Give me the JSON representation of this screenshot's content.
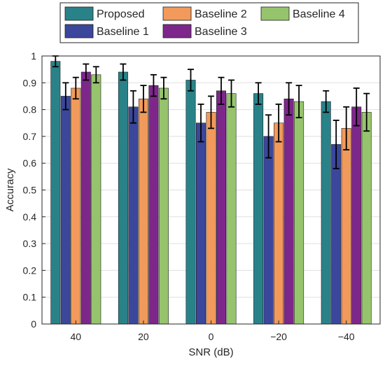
{
  "chart_data": {
    "type": "bar",
    "title": "",
    "xlabel": "SNR (dB)",
    "ylabel": "Accuracy",
    "categories": [
      "40",
      "20",
      "0",
      "−20",
      "−40"
    ],
    "ylim": [
      0,
      1
    ],
    "yticks": [
      "0",
      "0.1",
      "0.2",
      "0.3",
      "0.4",
      "0.5",
      "0.6",
      "0.7",
      "0.8",
      "0.9",
      "1"
    ],
    "grid": true,
    "legend_position": "top",
    "series": [
      {
        "name": "Proposed",
        "color": "#2a8289",
        "values": [
          0.98,
          0.94,
          0.91,
          0.86,
          0.83
        ],
        "err": [
          0.02,
          0.03,
          0.04,
          0.04,
          0.04
        ]
      },
      {
        "name": "Baseline 1",
        "color": "#3a479b",
        "values": [
          0.85,
          0.81,
          0.75,
          0.7,
          0.67
        ],
        "err": [
          0.05,
          0.06,
          0.07,
          0.08,
          0.09
        ]
      },
      {
        "name": "Baseline 2",
        "color": "#f29a5b",
        "values": [
          0.88,
          0.84,
          0.79,
          0.75,
          0.73
        ],
        "err": [
          0.04,
          0.05,
          0.06,
          0.07,
          0.08
        ]
      },
      {
        "name": "Baseline 3",
        "color": "#7e278b",
        "values": [
          0.94,
          0.89,
          0.87,
          0.84,
          0.81
        ],
        "err": [
          0.03,
          0.04,
          0.05,
          0.06,
          0.07
        ]
      },
      {
        "name": "Baseline 4",
        "color": "#96c46d",
        "values": [
          0.93,
          0.88,
          0.86,
          0.83,
          0.79
        ],
        "err": [
          0.03,
          0.04,
          0.05,
          0.06,
          0.07
        ]
      }
    ]
  }
}
